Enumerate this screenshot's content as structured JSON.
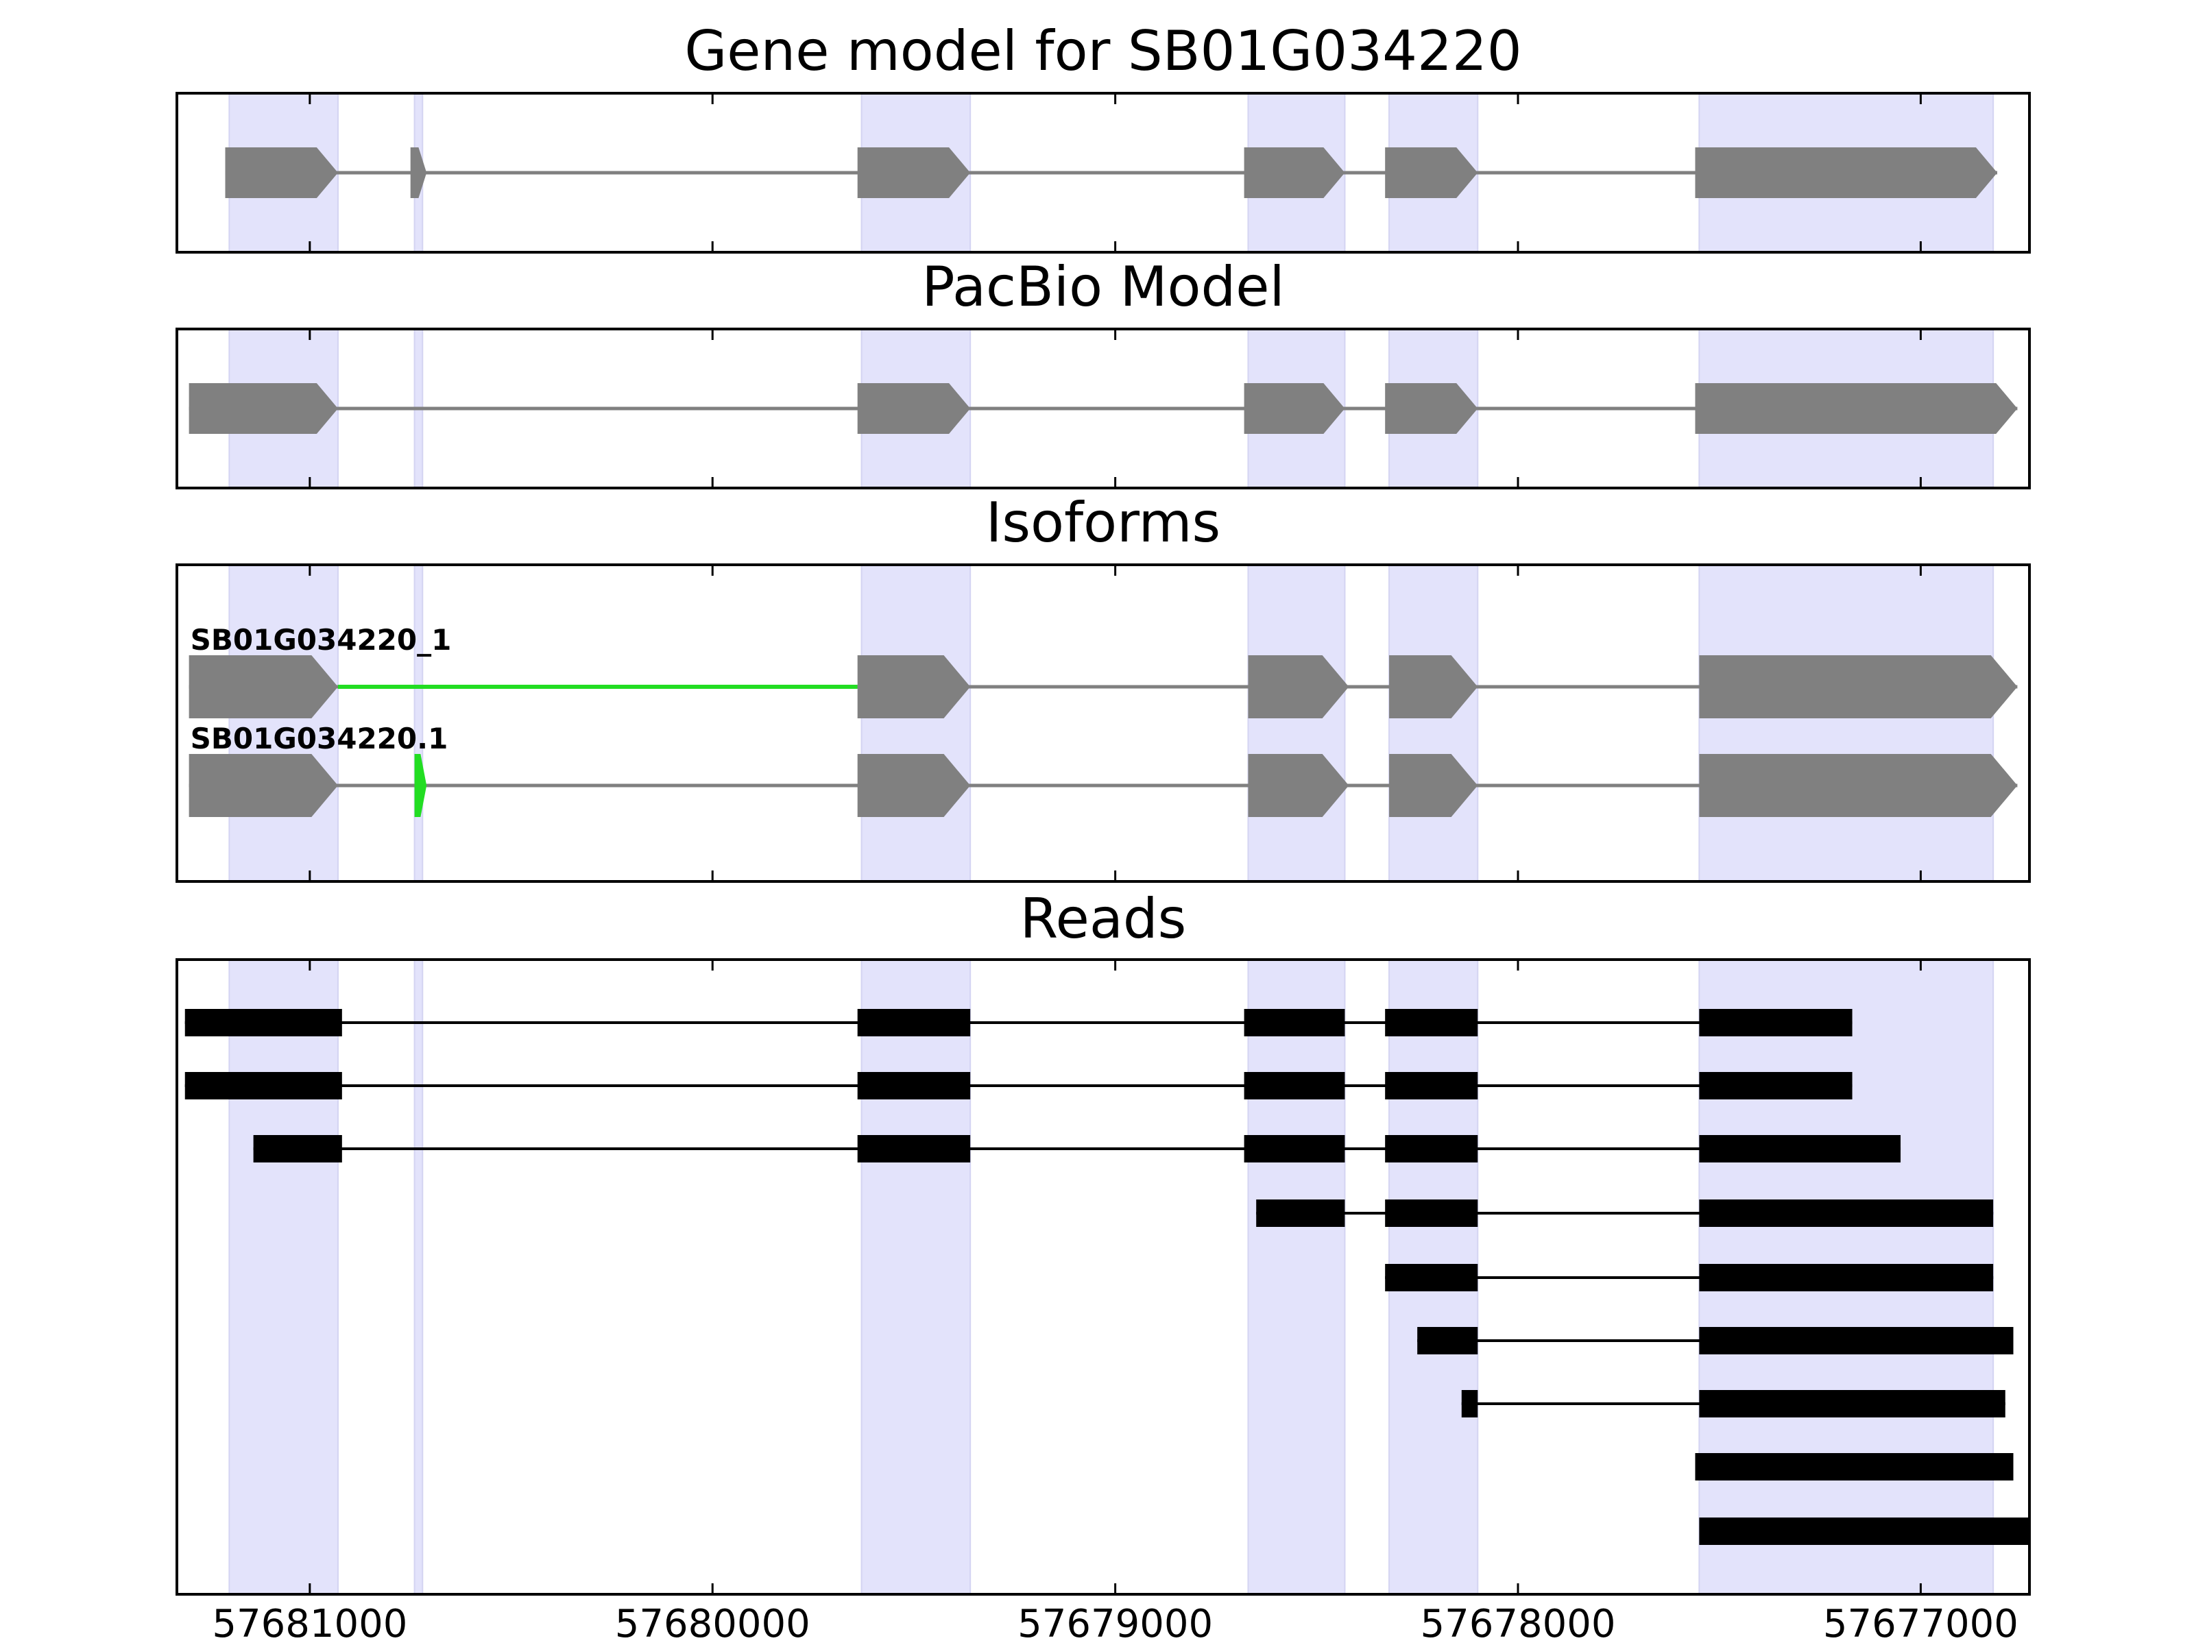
{
  "chart_data": {
    "type": "gene-model-track",
    "x_reversed": true,
    "xlim": [
      57681330,
      57676730
    ],
    "xticks": [
      57681000,
      57680000,
      57679000,
      57678000,
      57677000
    ],
    "xtick_labels": [
      "57681000",
      "57680000",
      "57679000",
      "57678000",
      "57677000"
    ],
    "highlight_color": "#e3e3fb",
    "exon_color": "#808080",
    "intron_color": "#808080",
    "diff_color": "#22dd22",
    "read_color": "#000000",
    "highlight_regions": [
      [
        57681200,
        57680930
      ],
      [
        57680740,
        57680720
      ],
      [
        57679630,
        57679360
      ],
      [
        57678670,
        57678430
      ],
      [
        57678320,
        57678100
      ],
      [
        57677550,
        57676820
      ]
    ],
    "panels": [
      {
        "id": "gene",
        "title": "Gene model for SB01G034220",
        "rows": [
          {
            "label": "",
            "exons": [
              [
                57681210,
                57680930
              ],
              [
                57680750,
                57680710
              ],
              [
                57679640,
                57679360
              ],
              [
                57678680,
                57678430
              ],
              [
                57678330,
                57678100
              ],
              [
                57677560,
                57676810
              ]
            ],
            "intron_color": "#808080",
            "diff_exons": []
          }
        ]
      },
      {
        "id": "pacbio",
        "title": "PacBio Model",
        "rows": [
          {
            "label": "",
            "exons": [
              [
                57681300,
                57680930
              ],
              [
                57679640,
                57679360
              ],
              [
                57678680,
                57678430
              ],
              [
                57678330,
                57678100
              ],
              [
                57677560,
                57676760
              ]
            ],
            "intron_color": "#808080",
            "diff_exons": []
          }
        ]
      },
      {
        "id": "isoforms",
        "title": "Isoforms",
        "rows": [
          {
            "label": "SB01G034220_1",
            "exons": [
              [
                57681300,
                57680930
              ],
              [
                57679640,
                57679360
              ],
              [
                57678670,
                57678420
              ],
              [
                57678320,
                57678100
              ],
              [
                57677550,
                57676760
              ]
            ],
            "intron_color": "#808080",
            "green_intron": [
              57680930,
              57679640
            ],
            "diff_exons": []
          },
          {
            "label": "SB01G034220.1",
            "exons": [
              [
                57681300,
                57680930
              ],
              [
                57679640,
                57679360
              ],
              [
                57678670,
                57678420
              ],
              [
                57678320,
                57678100
              ],
              [
                57677550,
                57676760
              ]
            ],
            "intron_color": "#808080",
            "diff_exons": [
              [
                57680740,
                57680710
              ]
            ]
          }
        ]
      },
      {
        "id": "reads",
        "title": "Reads",
        "rows": [
          {
            "blocks": [
              [
                57681310,
                57680920
              ],
              [
                57679640,
                57679360
              ],
              [
                57678680,
                57678430
              ],
              [
                57678330,
                57678100
              ],
              [
                57677550,
                57677170
              ]
            ]
          },
          {
            "blocks": [
              [
                57681310,
                57680920
              ],
              [
                57679640,
                57679360
              ],
              [
                57678680,
                57678430
              ],
              [
                57678330,
                57678100
              ],
              [
                57677550,
                57677170
              ]
            ]
          },
          {
            "blocks": [
              [
                57681140,
                57680920
              ],
              [
                57679640,
                57679360
              ],
              [
                57678680,
                57678430
              ],
              [
                57678330,
                57678100
              ],
              [
                57677550,
                57677050
              ]
            ]
          },
          {
            "blocks": [
              [
                57678650,
                57678430
              ],
              [
                57678330,
                57678100
              ],
              [
                57677550,
                57676820
              ]
            ]
          },
          {
            "blocks": [
              [
                57678330,
                57678100
              ],
              [
                57677550,
                57676820
              ]
            ]
          },
          {
            "blocks": [
              [
                57678250,
                57678100
              ],
              [
                57677550,
                57676770
              ]
            ]
          },
          {
            "blocks": [
              [
                57678140,
                57678100
              ],
              [
                57677550,
                57676790
              ]
            ]
          },
          {
            "blocks": [
              [
                57677560,
                57676770
              ]
            ]
          },
          {
            "blocks": [
              [
                57677550,
                57676730
              ]
            ]
          }
        ]
      }
    ]
  }
}
